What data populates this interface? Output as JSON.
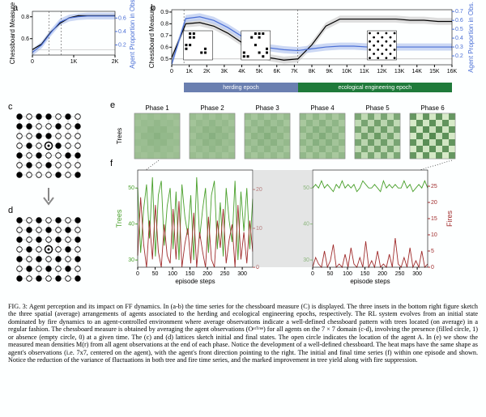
{
  "figure_label": "FIG. 3:",
  "caption": "Agent perception and its impact on FF dynamics. In (a-b) the time series for the chessboard measure (C) is displayed. The three insets in the bottom right figure sketch the three spatial (average) arrangements of agents associated to the herding and ecological engineering epochs, respectively. The RL system evolves from an initial state dominated by fire dynamics to an agent-controlled environment where average observations indicate a well-defined chessboard pattern with trees located (on average) in a regular fashion. The chessboard measure is obtained by averaging the agent observations (Oᵃᵗᵀʳᵉᵉ) for all agents on the 7 × 7 domain (c-d), involving the presence (filled circle, 1) or absence (empty circle, 0) at a given time. The (c) and (d) lattices sketch initial and final states. The open circle indicates the location of the agent A. In (e) we show the measured mean densities M(r) from all agent observations at the end of each phase. Notice the development of a well-defined chessboard. The heat maps have the same shape as agent's observations (i.e. 7x7, centered on the agent), with the agent's front direction pointing to the right. The initial and final time series (f) within one episode and shown. Notice the reduction of the variance of fluctuations in both tree and fire time series, and the marked improvement in tree yield along with fire suppression.",
  "panel_a": {
    "label": "a",
    "type": "line",
    "xlim": [
      0,
      2000
    ],
    "xticks": [
      0,
      1000,
      2000
    ],
    "xtick_labels": [
      "0",
      "1K",
      "2K"
    ],
    "ylim_left": [
      0.45,
      0.85
    ],
    "yticks_left": [
      0.6,
      0.8
    ],
    "ylim_right": [
      0.05,
      0.7
    ],
    "yticks_right": [
      0.2,
      0.4,
      0.6
    ],
    "ylabel_left": "Chessboard Measure",
    "ylabel_right": "Agent Proportion in Obs.",
    "color_left": "#000000",
    "color_right": "#4a6fd6",
    "band_right": "#b6c7f0",
    "dash_x": [
      400,
      700
    ],
    "hline_y": 0.5,
    "series_left_y": [
      0.5,
      0.55,
      0.66,
      0.74,
      0.79,
      0.81,
      0.81,
      0.81,
      0.81,
      0.81
    ],
    "series_right_y": [
      0.09,
      0.2,
      0.38,
      0.54,
      0.6,
      0.62,
      0.63,
      0.63,
      0.63,
      0.63
    ],
    "x_pts": [
      0,
      222,
      444,
      666,
      888,
      1110,
      1332,
      1554,
      1776,
      2000
    ]
  },
  "panel_b": {
    "label": "b",
    "type": "line",
    "xlim": [
      0,
      16000
    ],
    "xticks": [
      0,
      1000,
      2000,
      3000,
      4000,
      5000,
      6000,
      7000,
      8000,
      9000,
      10000,
      11000,
      12000,
      13000,
      14000,
      15000,
      16000
    ],
    "xtick_labels": [
      "0",
      "1K",
      "2K",
      "3K",
      "4K",
      "5K",
      "6K",
      "7K",
      "8K",
      "9K",
      "10K",
      "11K",
      "12K",
      "13K",
      "14K",
      "15K",
      "16K"
    ],
    "ylim_left": [
      0.45,
      0.92
    ],
    "yticks_left": [
      0.5,
      0.6,
      0.7,
      0.8,
      0.9
    ],
    "ylim_right": [
      0.1,
      0.72
    ],
    "yticks_right": [
      0.2,
      0.3,
      0.4,
      0.5,
      0.6,
      0.7
    ],
    "ylabel_left": "Chessboard Measure",
    "ylabel_right": "Agent Proportion in Obs.",
    "color_left": "#000000",
    "color_right": "#4a6fd6",
    "band_right": "#b6c7f0",
    "band_left": "#d5d5d5",
    "dash_x": [
      700,
      7200
    ],
    "hline_y": 0.5,
    "x_pts": [
      0,
      800,
      1600,
      2400,
      3200,
      4000,
      4800,
      5600,
      6400,
      7200,
      8000,
      8800,
      9600,
      10400,
      11200,
      12000,
      12800,
      13600,
      14400,
      15200,
      16000
    ],
    "series_left_y": [
      0.51,
      0.8,
      0.81,
      0.78,
      0.72,
      0.64,
      0.56,
      0.51,
      0.49,
      0.5,
      0.62,
      0.78,
      0.84,
      0.84,
      0.84,
      0.84,
      0.84,
      0.83,
      0.83,
      0.82,
      0.82
    ],
    "series_right_y": [
      0.11,
      0.62,
      0.64,
      0.6,
      0.52,
      0.42,
      0.34,
      0.29,
      0.27,
      0.26,
      0.28,
      0.3,
      0.31,
      0.31,
      0.3,
      0.3,
      0.3,
      0.3,
      0.3,
      0.3,
      0.3
    ],
    "herding_band": {
      "label": "herding epoch",
      "color": "#6a7fb0",
      "x": [
        700,
        7200
      ]
    },
    "eco_band": {
      "label": "ecological engineering epoch",
      "color": "#1f7a3a",
      "x": [
        7200,
        16000
      ]
    },
    "insets": [
      {
        "x": 1500,
        "dots": [
          [
            1,
            1
          ],
          [
            2,
            1
          ],
          [
            2,
            0
          ],
          [
            1,
            0
          ],
          [
            4,
            5
          ],
          [
            5,
            5
          ],
          [
            5,
            4
          ],
          [
            0,
            4
          ],
          [
            0,
            3
          ],
          [
            1,
            3
          ]
        ]
      },
      {
        "x": 4800,
        "dots": [
          [
            0,
            6
          ],
          [
            1,
            6
          ],
          [
            0,
            5
          ],
          [
            4,
            5
          ],
          [
            5,
            6
          ],
          [
            6,
            5
          ],
          [
            6,
            4
          ],
          [
            3,
            3
          ],
          [
            2,
            1
          ],
          [
            3,
            0
          ],
          [
            4,
            1
          ],
          [
            4,
            0
          ],
          [
            5,
            0
          ]
        ]
      },
      {
        "x": 12000,
        "checker": true
      }
    ]
  },
  "panel_c": {
    "label": "c",
    "grid": 7,
    "agent": [
      3,
      3
    ],
    "filled": [
      [
        0,
        0
      ],
      [
        2,
        0
      ],
      [
        3,
        0
      ],
      [
        5,
        0
      ],
      [
        0,
        1
      ],
      [
        1,
        1
      ],
      [
        4,
        1
      ],
      [
        6,
        1
      ],
      [
        2,
        2
      ],
      [
        3,
        2
      ],
      [
        1,
        3
      ],
      [
        4,
        3
      ],
      [
        0,
        4
      ],
      [
        2,
        4
      ],
      [
        5,
        4
      ],
      [
        6,
        4
      ],
      [
        1,
        5
      ],
      [
        3,
        5
      ],
      [
        0,
        6
      ],
      [
        4,
        6
      ],
      [
        6,
        6
      ]
    ],
    "fill": "#000",
    "empty": "#fff",
    "stroke": "#000"
  },
  "panel_d": {
    "label": "d",
    "grid": 7,
    "agent": [
      3,
      3
    ],
    "filled": [
      [
        0,
        0
      ],
      [
        2,
        0
      ],
      [
        4,
        0
      ],
      [
        6,
        0
      ],
      [
        1,
        1
      ],
      [
        3,
        1
      ],
      [
        5,
        1
      ],
      [
        0,
        2
      ],
      [
        2,
        2
      ],
      [
        4,
        2
      ],
      [
        6,
        2
      ],
      [
        1,
        3
      ],
      [
        5,
        3
      ],
      [
        0,
        4
      ],
      [
        2,
        4
      ],
      [
        4,
        4
      ],
      [
        6,
        4
      ],
      [
        1,
        5
      ],
      [
        3,
        5
      ],
      [
        5,
        5
      ],
      [
        0,
        6
      ],
      [
        2,
        6
      ],
      [
        4,
        6
      ],
      [
        6,
        6
      ]
    ],
    "fill": "#000",
    "empty": "#fff",
    "stroke": "#000"
  },
  "arrow_cd": {
    "color": "#888"
  },
  "panel_e": {
    "label": "e",
    "phase_labels": [
      "Phase 1",
      "Phase 2",
      "Phase 3",
      "Phase 4",
      "Phase 5",
      "Phase 6"
    ],
    "ylabel": "Trees",
    "palette_low": "#dff0d0",
    "palette_mid": "#7ab55c",
    "palette_high": "#2a6b2a",
    "bg": "#fff",
    "checker_strength": [
      0.05,
      0.08,
      0.12,
      0.18,
      0.55,
      0.9
    ]
  },
  "panel_f": {
    "label": "f",
    "xlabel": "episode steps",
    "ylabel_left": "Trees",
    "ylabel_right": "Fires",
    "color_trees": "#4aa02c",
    "color_fires": "#a02c2c",
    "xlim": [
      0,
      330
    ],
    "xticks": [
      0,
      50,
      100,
      150,
      200,
      250,
      300
    ],
    "left": {
      "ylim_trees": [
        28,
        55
      ],
      "yticks_trees": [
        30,
        40,
        50
      ],
      "ylim_fires": [
        0,
        25
      ],
      "yticks_fires": [
        0,
        10,
        20
      ],
      "trees": [
        50,
        32,
        44,
        51,
        36,
        53,
        31,
        48,
        52,
        34,
        45,
        50,
        33,
        49,
        30,
        51,
        42,
        37,
        48,
        30,
        53,
        36,
        44,
        50,
        32,
        48,
        52,
        33,
        46,
        31,
        50,
        41,
        35,
        52,
        30,
        49,
        38,
        50,
        33,
        47
      ],
      "fires": [
        3,
        18,
        6,
        0,
        12,
        2,
        16,
        4,
        0,
        11,
        3,
        1,
        15,
        2,
        17,
        0,
        6,
        10,
        1,
        14,
        0,
        9,
        4,
        0,
        13,
        2,
        0,
        12,
        5,
        15,
        1,
        7,
        11,
        0,
        16,
        2,
        9,
        1,
        12,
        4
      ]
    },
    "right": {
      "ylim_trees": [
        28,
        55
      ],
      "yticks_trees": [
        30,
        40,
        50
      ],
      "ylim_fires": [
        0,
        30
      ],
      "yticks_fires": [
        0,
        5,
        10,
        15,
        20,
        25
      ],
      "trees": [
        50,
        51,
        50,
        52,
        50,
        51,
        50,
        49,
        51,
        50,
        52,
        50,
        51,
        50,
        51,
        49,
        50,
        52,
        51,
        50,
        50,
        51,
        50,
        49,
        52,
        50,
        51,
        50,
        51,
        50,
        50,
        52,
        50,
        51,
        49,
        50,
        51,
        50,
        52,
        50
      ],
      "fires": [
        0,
        3,
        1,
        0,
        5,
        0,
        2,
        7,
        0,
        1,
        0,
        4,
        0,
        6,
        1,
        0,
        3,
        0,
        8,
        0,
        2,
        0,
        5,
        0,
        1,
        0,
        4,
        0,
        9,
        1,
        0,
        3,
        0,
        6,
        0,
        2,
        0,
        5,
        0,
        1
      ]
    }
  },
  "colors": {
    "background": "#fdffff"
  }
}
